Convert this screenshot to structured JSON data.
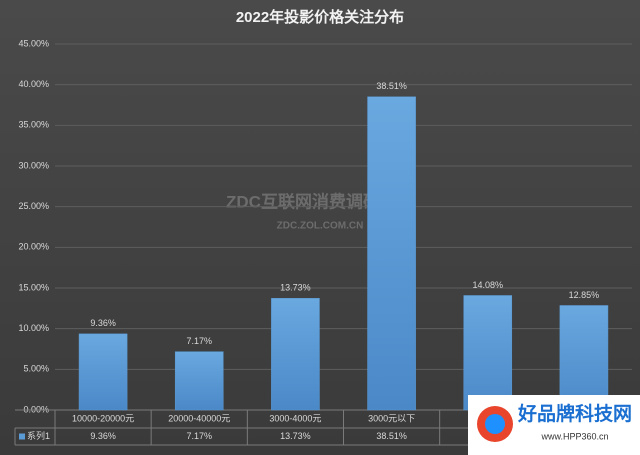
{
  "chart_data": {
    "type": "bar",
    "title": "2022年投影价格关注分布",
    "categories": [
      "10000-20000元",
      "20000-40000元",
      "3000-4000元",
      "3000元以下",
      null,
      null
    ],
    "series": [
      {
        "name": "系列1",
        "color": "#5b9bd5",
        "values": [
          9.36,
          7.17,
          13.73,
          38.51,
          14.08,
          12.85
        ],
        "value_labels": [
          "9.36%",
          "7.17%",
          "13.73%",
          "38.51%",
          "14.08%",
          "12.85%"
        ]
      }
    ],
    "ylim": [
      0,
      45
    ],
    "yticks": [
      {
        "value": 0,
        "label": "0.00%"
      },
      {
        "value": 5,
        "label": "5.00%"
      },
      {
        "value": 10,
        "label": "10.00%"
      },
      {
        "value": 15,
        "label": "15.00%"
      },
      {
        "value": 20,
        "label": "20.00%"
      },
      {
        "value": 25,
        "label": "25.00%"
      },
      {
        "value": 30,
        "label": "30.00%"
      },
      {
        "value": 35,
        "label": "35.00%"
      },
      {
        "value": 40,
        "label": "40.00%"
      },
      {
        "value": 45,
        "label": "45.00%"
      }
    ],
    "grid": true,
    "watermarks": [
      "ZDC互联网消费调研中心",
      "ZDC.ZOL.COM.CN",
      "好品牌科技网",
      "www.HPP360.cn"
    ]
  }
}
